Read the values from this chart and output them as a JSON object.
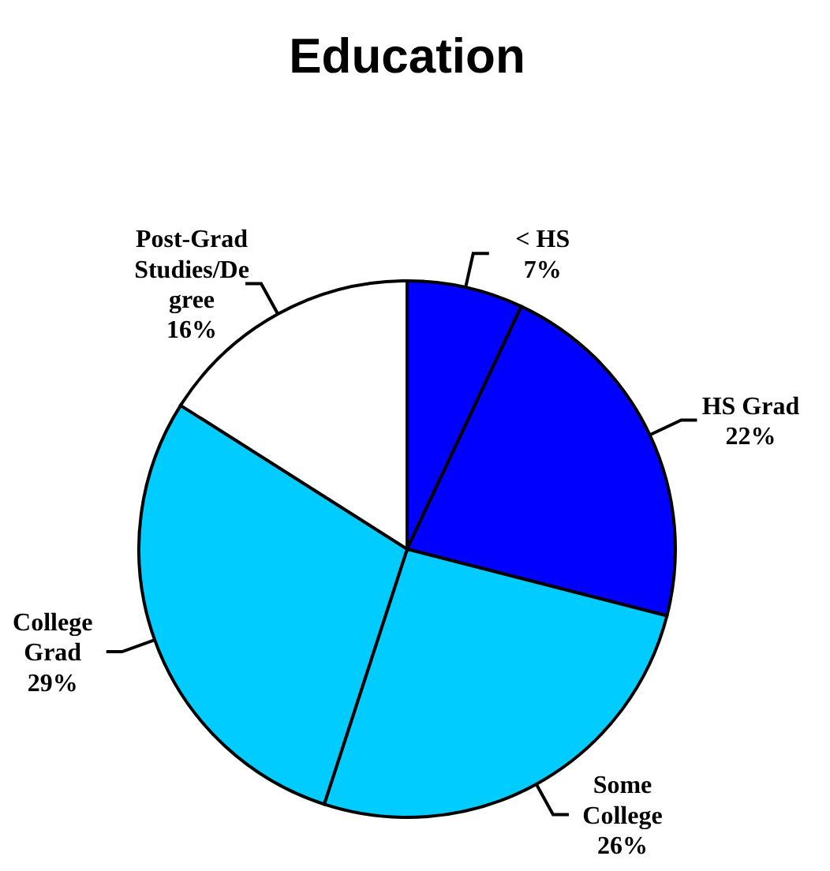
{
  "chart_data": {
    "type": "pie",
    "title": "Education",
    "categories": [
      "< HS",
      "HS Grad",
      "Some College",
      "College Grad",
      "Post-Grad Studies/Degree"
    ],
    "values": [
      7,
      22,
      26,
      29,
      16
    ],
    "value_labels": [
      "7%",
      "22%",
      "26%",
      "29%",
      "16%"
    ],
    "colors": [
      "#0000ff",
      "#0000ff",
      "#00ccff",
      "#00ccff",
      "#ffffff"
    ]
  }
}
